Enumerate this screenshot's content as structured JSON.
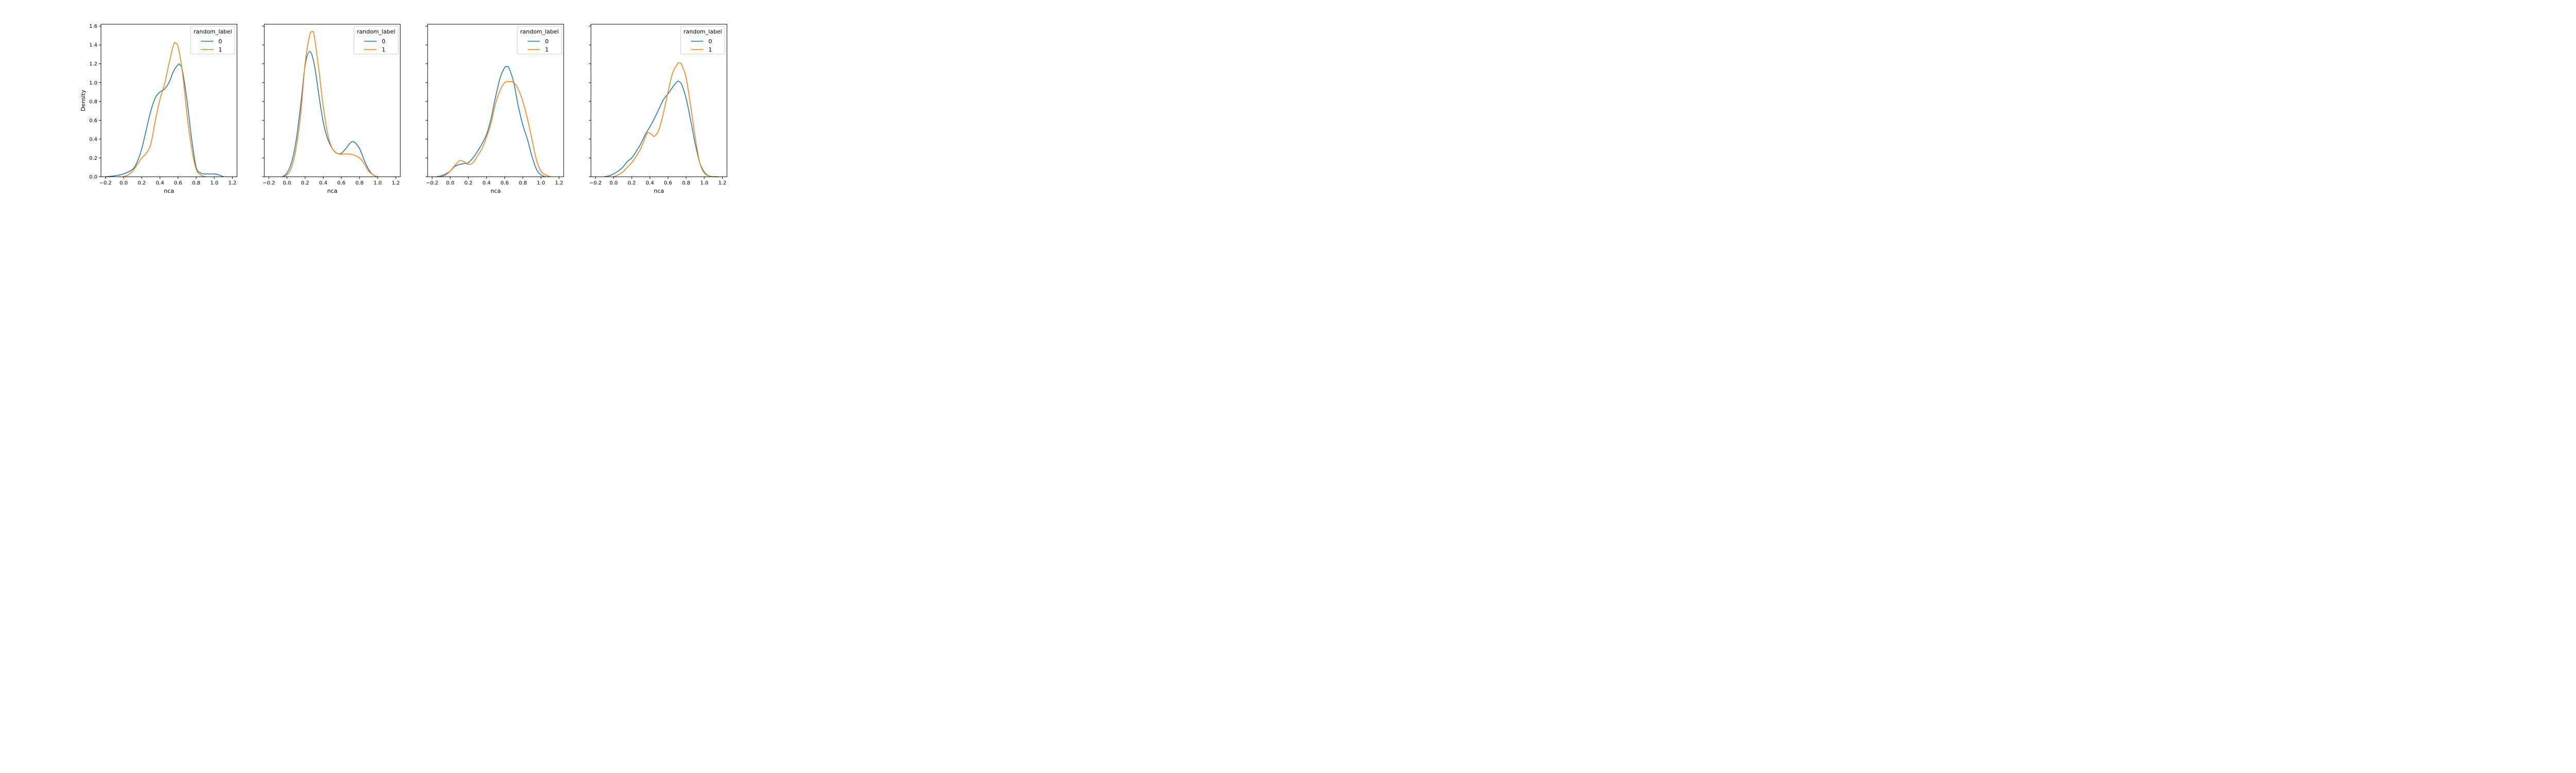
{
  "chart_data": [
    {
      "type": "line",
      "xlabel": "nca",
      "ylabel": "Density",
      "xlim": [
        -0.25,
        1.25
      ],
      "ylim": [
        0.0,
        1.62
      ],
      "x_ticks": [
        "−0.2",
        "0.0",
        "0.2",
        "0.4",
        "0.6",
        "0.8",
        "1.0",
        "1.2"
      ],
      "y_ticks": [
        "0.0",
        "0.2",
        "0.4",
        "0.6",
        "0.8",
        "1.0",
        "1.2",
        "1.4",
        "1.6"
      ],
      "show_y_tick_labels": true,
      "legend": {
        "title": "random_label",
        "placement": "top-right"
      },
      "series": [
        {
          "name": "0",
          "color": "#1f77b4",
          "x": [
            -0.2,
            -0.1,
            0.0,
            0.1,
            0.15,
            0.2,
            0.25,
            0.3,
            0.35,
            0.4,
            0.45,
            0.5,
            0.55,
            0.6,
            0.62,
            0.65,
            0.7,
            0.75,
            0.8,
            0.85,
            0.9,
            1.0,
            1.05,
            1.1
          ],
          "y": [
            0.0,
            0.01,
            0.03,
            0.08,
            0.16,
            0.3,
            0.5,
            0.7,
            0.84,
            0.9,
            0.93,
            1.0,
            1.12,
            1.19,
            1.19,
            1.12,
            0.8,
            0.4,
            0.1,
            0.04,
            0.03,
            0.03,
            0.02,
            0.0
          ]
        },
        {
          "name": "1",
          "color": "#ff7f0e",
          "x": [
            0.0,
            0.05,
            0.1,
            0.15,
            0.2,
            0.25,
            0.3,
            0.35,
            0.4,
            0.45,
            0.5,
            0.55,
            0.57,
            0.6,
            0.65,
            0.7,
            0.75,
            0.8,
            0.85,
            0.9
          ],
          "y": [
            0.0,
            0.02,
            0.06,
            0.13,
            0.2,
            0.25,
            0.35,
            0.6,
            0.82,
            0.98,
            1.2,
            1.4,
            1.42,
            1.38,
            1.1,
            0.65,
            0.3,
            0.08,
            0.02,
            0.0
          ]
        }
      ]
    },
    {
      "type": "line",
      "xlabel": "nca",
      "ylabel": "",
      "xlim": [
        -0.25,
        1.25
      ],
      "ylim": [
        0.0,
        1.62
      ],
      "x_ticks": [
        "−0.2",
        "0.0",
        "0.2",
        "0.4",
        "0.6",
        "0.8",
        "1.0",
        "1.2"
      ],
      "y_ticks": [
        "0.0",
        "0.2",
        "0.4",
        "0.6",
        "0.8",
        "1.0",
        "1.2",
        "1.4",
        "1.6"
      ],
      "show_y_tick_labels": false,
      "legend": {
        "title": "random_label",
        "placement": "top-right"
      },
      "series": [
        {
          "name": "0",
          "color": "#1f77b4",
          "x": [
            -0.05,
            0.0,
            0.05,
            0.1,
            0.15,
            0.2,
            0.25,
            0.3,
            0.35,
            0.4,
            0.45,
            0.5,
            0.55,
            0.6,
            0.65,
            0.7,
            0.74,
            0.8,
            0.85,
            0.9,
            0.95,
            1.0
          ],
          "y": [
            0.0,
            0.04,
            0.15,
            0.38,
            0.75,
            1.18,
            1.33,
            1.2,
            0.88,
            0.58,
            0.4,
            0.3,
            0.25,
            0.25,
            0.3,
            0.36,
            0.37,
            0.3,
            0.18,
            0.08,
            0.02,
            0.0
          ]
        },
        {
          "name": "1",
          "color": "#ff7f0e",
          "x": [
            -0.05,
            0.0,
            0.05,
            0.1,
            0.15,
            0.2,
            0.25,
            0.28,
            0.3,
            0.35,
            0.4,
            0.45,
            0.5,
            0.55,
            0.6,
            0.7,
            0.8,
            0.85,
            0.9,
            0.95,
            1.0
          ],
          "y": [
            0.0,
            0.02,
            0.1,
            0.3,
            0.65,
            1.2,
            1.5,
            1.54,
            1.5,
            1.15,
            0.75,
            0.45,
            0.3,
            0.25,
            0.24,
            0.24,
            0.2,
            0.14,
            0.06,
            0.02,
            0.0
          ]
        }
      ]
    },
    {
      "type": "line",
      "xlabel": "nca",
      "ylabel": "",
      "xlim": [
        -0.25,
        1.25
      ],
      "ylim": [
        0.0,
        1.62
      ],
      "x_ticks": [
        "−0.2",
        "0.0",
        "0.2",
        "0.4",
        "0.6",
        "0.8",
        "1.0",
        "1.2"
      ],
      "y_ticks": [
        "0.0",
        "0.2",
        "0.4",
        "0.6",
        "0.8",
        "1.0",
        "1.2",
        "1.4",
        "1.6"
      ],
      "show_y_tick_labels": false,
      "legend": {
        "title": "random_label",
        "placement": "top-right"
      },
      "series": [
        {
          "name": "0",
          "color": "#1f77b4",
          "x": [
            -0.15,
            -0.1,
            -0.05,
            0.0,
            0.05,
            0.1,
            0.15,
            0.2,
            0.25,
            0.3,
            0.35,
            0.4,
            0.45,
            0.5,
            0.55,
            0.6,
            0.63,
            0.65,
            0.7,
            0.75,
            0.8,
            0.85,
            0.9,
            0.95,
            1.0,
            1.05
          ],
          "y": [
            0.0,
            0.01,
            0.03,
            0.06,
            0.11,
            0.13,
            0.14,
            0.15,
            0.2,
            0.27,
            0.35,
            0.45,
            0.62,
            0.85,
            1.05,
            1.16,
            1.17,
            1.15,
            1.0,
            0.75,
            0.55,
            0.4,
            0.22,
            0.08,
            0.02,
            0.0
          ]
        },
        {
          "name": "1",
          "color": "#ff7f0e",
          "x": [
            -0.1,
            -0.05,
            0.0,
            0.05,
            0.1,
            0.15,
            0.2,
            0.25,
            0.3,
            0.35,
            0.4,
            0.45,
            0.5,
            0.55,
            0.6,
            0.65,
            0.7,
            0.75,
            0.8,
            0.85,
            0.9,
            0.95,
            1.0,
            1.05,
            1.1
          ],
          "y": [
            0.0,
            0.02,
            0.06,
            0.12,
            0.17,
            0.16,
            0.13,
            0.15,
            0.22,
            0.3,
            0.42,
            0.57,
            0.78,
            0.92,
            1.0,
            1.01,
            1.0,
            0.93,
            0.8,
            0.62,
            0.4,
            0.18,
            0.06,
            0.02,
            0.0
          ]
        }
      ]
    },
    {
      "type": "line",
      "xlabel": "nca",
      "ylabel": "",
      "xlim": [
        -0.25,
        1.25
      ],
      "ylim": [
        0.0,
        1.62
      ],
      "x_ticks": [
        "−0.2",
        "0.0",
        "0.2",
        "0.4",
        "0.6",
        "0.8",
        "1.0",
        "1.2"
      ],
      "y_ticks": [
        "0.0",
        "0.2",
        "0.4",
        "0.6",
        "0.8",
        "1.0",
        "1.2",
        "1.4",
        "1.6"
      ],
      "show_y_tick_labels": false,
      "legend": {
        "title": "random_label",
        "placement": "top-right"
      },
      "series": [
        {
          "name": "0",
          "color": "#1f77b4",
          "x": [
            -0.1,
            -0.05,
            0.0,
            0.05,
            0.1,
            0.15,
            0.2,
            0.25,
            0.3,
            0.35,
            0.4,
            0.45,
            0.5,
            0.55,
            0.6,
            0.65,
            0.7,
            0.72,
            0.75,
            0.8,
            0.85,
            0.9,
            0.95,
            1.0,
            1.05,
            1.1,
            1.15
          ],
          "y": [
            0.0,
            0.01,
            0.03,
            0.06,
            0.1,
            0.16,
            0.2,
            0.27,
            0.35,
            0.45,
            0.53,
            0.62,
            0.72,
            0.82,
            0.88,
            0.95,
            1.01,
            1.01,
            0.98,
            0.83,
            0.6,
            0.35,
            0.15,
            0.05,
            0.01,
            0.0,
            0.0
          ]
        },
        {
          "name": "1",
          "color": "#ff7f0e",
          "x": [
            0.0,
            0.05,
            0.1,
            0.15,
            0.2,
            0.25,
            0.3,
            0.35,
            0.38,
            0.42,
            0.45,
            0.5,
            0.55,
            0.6,
            0.65,
            0.7,
            0.72,
            0.75,
            0.8,
            0.85,
            0.9,
            0.95,
            1.0,
            1.05,
            1.1
          ],
          "y": [
            0.0,
            0.02,
            0.05,
            0.1,
            0.15,
            0.22,
            0.3,
            0.42,
            0.47,
            0.45,
            0.43,
            0.5,
            0.68,
            0.9,
            1.1,
            1.19,
            1.21,
            1.19,
            1.05,
            0.75,
            0.42,
            0.15,
            0.04,
            0.01,
            0.0
          ]
        }
      ]
    }
  ]
}
